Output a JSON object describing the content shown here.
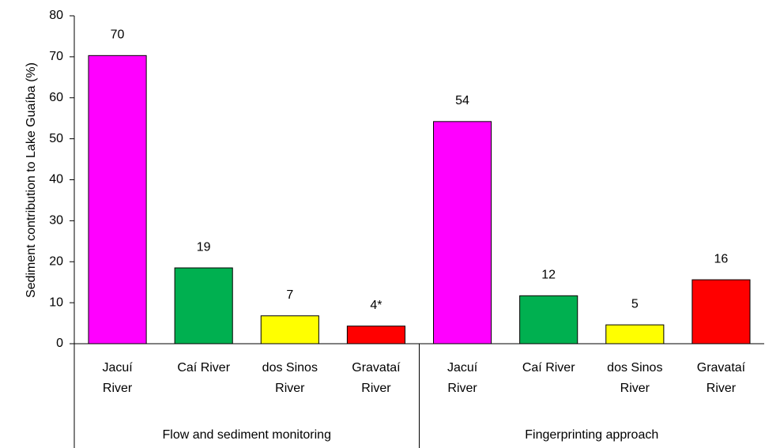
{
  "chart_data": {
    "type": "bar",
    "y_label": "Sediment contribution to Lake Guaíba (%)",
    "categories": [
      "Jacuí\nRiver",
      "Caí River",
      "dos Sinos\nRiver",
      "Gravataí\nRiver",
      "Jacuí\nRiver",
      "Caí River",
      "dos Sinos\nRiver",
      "Gravataí\nRiver"
    ],
    "groups": [
      "Flow and sediment monitoring",
      "Fingerprinting approach"
    ],
    "values": [
      70.3,
      18.5,
      6.8,
      4.3,
      54.2,
      11.7,
      4.6,
      15.6
    ],
    "value_labels": [
      "70",
      "19",
      "7",
      "4*",
      "54",
      "12",
      "5",
      "16"
    ],
    "colors": [
      "#ff00ff",
      "#00b050",
      "#ffff00",
      "#ff0000",
      "#ff00ff",
      "#00b050",
      "#ffff00",
      "#ff0000"
    ],
    "ylim": [
      0,
      80
    ],
    "yticks": [
      0,
      10,
      20,
      30,
      40,
      50,
      60,
      70,
      80
    ],
    "grid": false
  }
}
